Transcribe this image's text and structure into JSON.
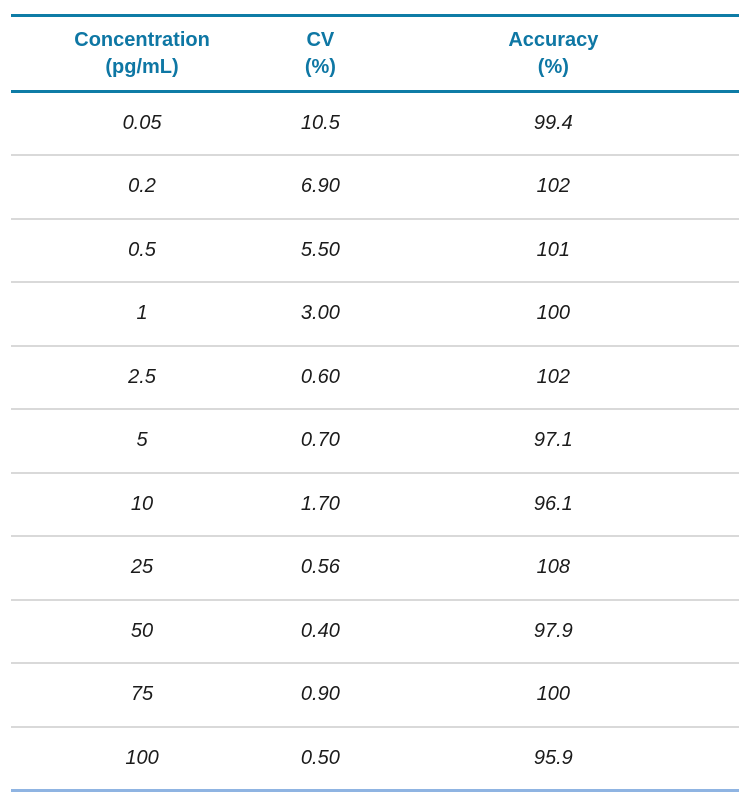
{
  "table": {
    "columns": [
      {
        "label": "Concentration\n(pg/mL)"
      },
      {
        "label": "CV\n(%)"
      },
      {
        "label": "Accuracy\n(%)"
      }
    ],
    "rows": [
      [
        "0.05",
        "10.5",
        "99.4"
      ],
      [
        "0.2",
        "6.90",
        "102"
      ],
      [
        "0.5",
        "5.50",
        "101"
      ],
      [
        "1",
        "3.00",
        "100"
      ],
      [
        "2.5",
        "0.60",
        "102"
      ],
      [
        "5",
        "0.70",
        "97.1"
      ],
      [
        "10",
        "1.70",
        "96.1"
      ],
      [
        "25",
        "0.56",
        "108"
      ],
      [
        "50",
        "0.40",
        "97.9"
      ],
      [
        "75",
        "0.90",
        "100"
      ],
      [
        "100",
        "0.50",
        "95.9"
      ]
    ]
  },
  "colors": {
    "background": "#FFFFFF",
    "header_text": "#0E77A4",
    "header_rule": "#0E7CA6",
    "row_divider": "#D9D9D9",
    "bottom_rule": "#8FB4E2",
    "body_text": "#1B1B1B"
  },
  "chart_data": {
    "type": "table",
    "title": "",
    "columns": [
      "Concentration (pg/mL)",
      "CV (%)",
      "Accuracy (%)"
    ],
    "rows": [
      [
        0.05,
        10.5,
        99.4
      ],
      [
        0.2,
        6.9,
        102
      ],
      [
        0.5,
        5.5,
        101
      ],
      [
        1,
        3.0,
        100
      ],
      [
        2.5,
        0.6,
        102
      ],
      [
        5,
        0.7,
        97.1
      ],
      [
        10,
        1.7,
        96.1
      ],
      [
        25,
        0.56,
        108
      ],
      [
        50,
        0.4,
        97.9
      ],
      [
        75,
        0.9,
        100
      ],
      [
        100,
        0.5,
        95.9
      ]
    ],
    "layout_hints": {
      "header_style": "bold teal, two-line with units",
      "body_style": "italic dark gray, centered",
      "rules": "teal top and header rules, light gray row dividers, light blue bottom rule"
    }
  }
}
